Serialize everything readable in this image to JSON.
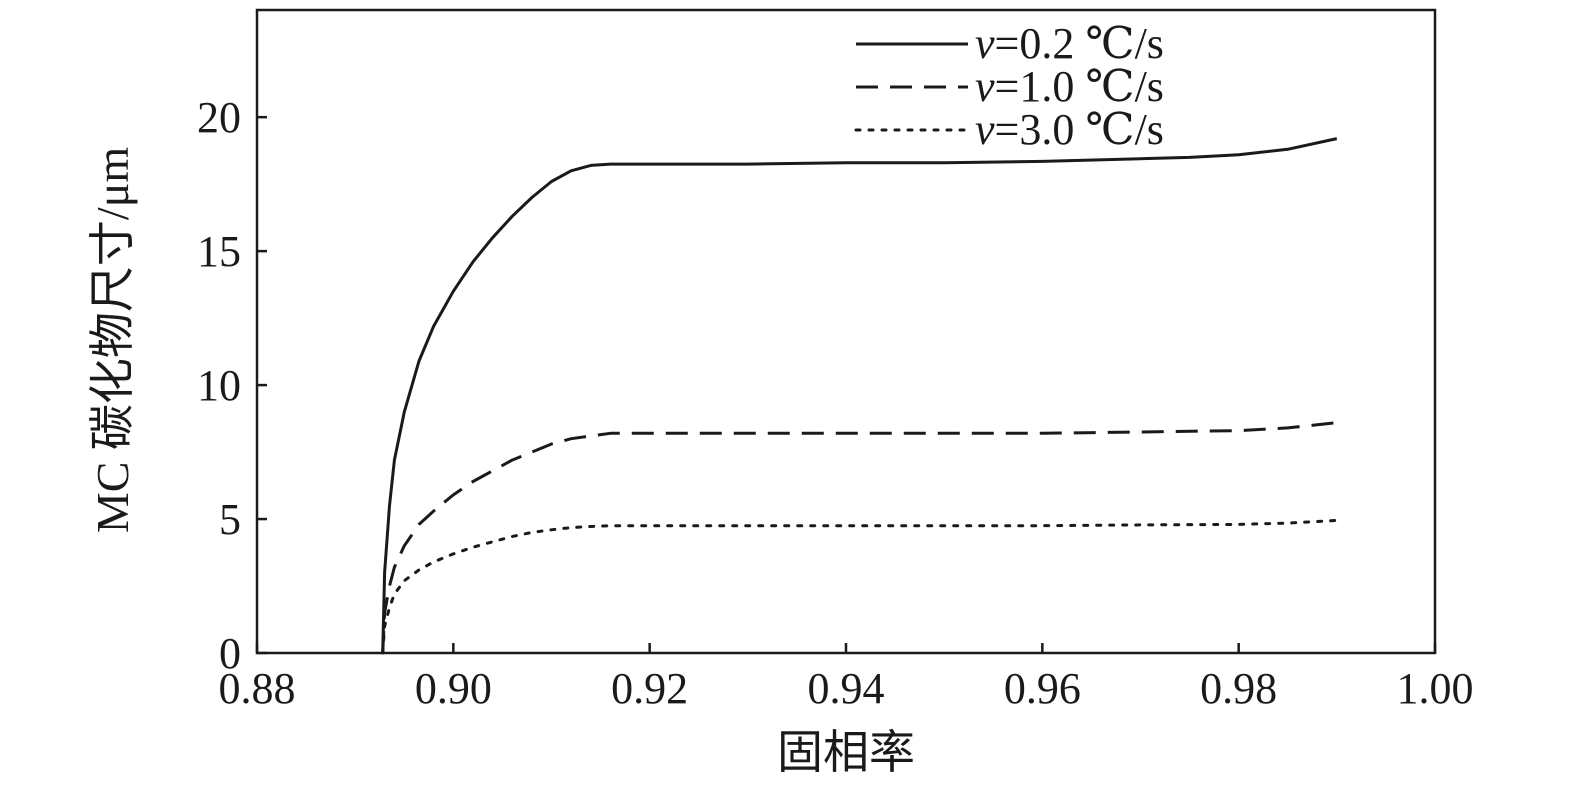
{
  "chart_data": {
    "type": "line",
    "title": "",
    "xlabel": "固相率",
    "ylabel": "MC 碳化物尺寸/μm",
    "xlim": [
      0.88,
      1.0
    ],
    "ylim": [
      0,
      24
    ],
    "xticks": [
      "0.88",
      "0.90",
      "0.92",
      "0.94",
      "0.96",
      "0.98",
      "1.00"
    ],
    "yticks": [
      "0",
      "5",
      "10",
      "15",
      "20"
    ],
    "grid": false,
    "legend_position": "top-right",
    "series": [
      {
        "name_prefix": "v",
        "name_suffix": "=0.2 ℃/s",
        "style": "solid",
        "x": [
          0.8928,
          0.893,
          0.8935,
          0.894,
          0.895,
          0.8965,
          0.898,
          0.9,
          0.902,
          0.904,
          0.906,
          0.908,
          0.91,
          0.912,
          0.914,
          0.916,
          0.918,
          0.92,
          0.93,
          0.94,
          0.95,
          0.96,
          0.97,
          0.975,
          0.98,
          0.985,
          0.99
        ],
        "y": [
          0,
          3.0,
          5.5,
          7.2,
          9.0,
          10.9,
          12.2,
          13.5,
          14.6,
          15.5,
          16.3,
          17.0,
          17.6,
          18.0,
          18.2,
          18.25,
          18.25,
          18.25,
          18.25,
          18.3,
          18.3,
          18.35,
          18.45,
          18.5,
          18.6,
          18.8,
          19.2
        ]
      },
      {
        "name_prefix": "v",
        "name_suffix": "=1.0 ℃/s",
        "style": "dashed",
        "x": [
          0.8928,
          0.893,
          0.8935,
          0.894,
          0.895,
          0.8965,
          0.898,
          0.9,
          0.902,
          0.904,
          0.906,
          0.908,
          0.91,
          0.912,
          0.914,
          0.916,
          0.918,
          0.93,
          0.94,
          0.95,
          0.96,
          0.97,
          0.98,
          0.985,
          0.99
        ],
        "y": [
          0,
          1.5,
          2.5,
          3.2,
          4.0,
          4.8,
          5.3,
          5.9,
          6.4,
          6.8,
          7.2,
          7.5,
          7.8,
          8.0,
          8.1,
          8.2,
          8.2,
          8.2,
          8.2,
          8.2,
          8.2,
          8.25,
          8.3,
          8.4,
          8.6
        ]
      },
      {
        "name_prefix": "v",
        "name_suffix": "=3.0 ℃/s",
        "style": "dotted",
        "x": [
          0.8928,
          0.893,
          0.8935,
          0.894,
          0.895,
          0.8965,
          0.898,
          0.9,
          0.902,
          0.904,
          0.906,
          0.908,
          0.91,
          0.912,
          0.914,
          0.916,
          0.918,
          0.93,
          0.94,
          0.95,
          0.96,
          0.97,
          0.98,
          0.985,
          0.99
        ],
        "y": [
          0,
          1.0,
          1.7,
          2.2,
          2.7,
          3.1,
          3.4,
          3.7,
          3.95,
          4.15,
          4.35,
          4.5,
          4.6,
          4.68,
          4.72,
          4.75,
          4.75,
          4.75,
          4.75,
          4.75,
          4.75,
          4.78,
          4.8,
          4.85,
          4.95
        ]
      }
    ]
  }
}
